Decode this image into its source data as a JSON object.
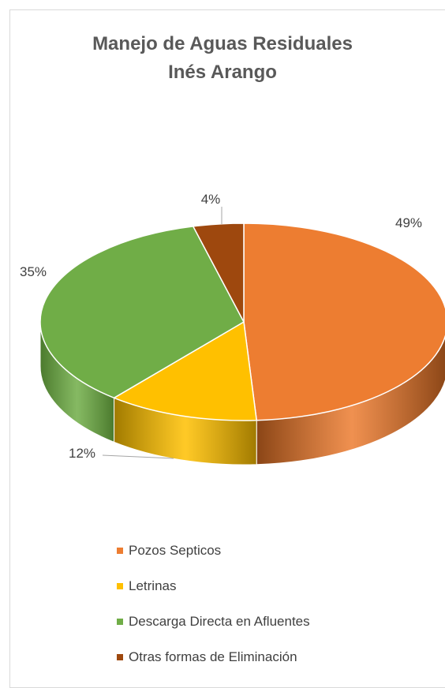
{
  "chart_data": {
    "type": "pie",
    "title_line1": "Manejo de Aguas Residuales",
    "title_line2": "Inés Arango",
    "categories": [
      "Pozos Septicos",
      "Letrinas",
      "Descarga Directa en Afluentes",
      "Otras formas de Eliminación"
    ],
    "values": [
      49,
      12,
      35,
      4
    ],
    "data_labels": [
      "49%",
      "12%",
      "35%",
      "4%"
    ],
    "colors": [
      "#ED7D31",
      "#FFC000",
      "#70AD47",
      "#9E480E"
    ],
    "side_colors": [
      "#8A4516",
      "#A07A00",
      "#4B7A2D",
      "#6B2F09"
    ],
    "legend_position": "bottom",
    "style": "3d-pie"
  }
}
